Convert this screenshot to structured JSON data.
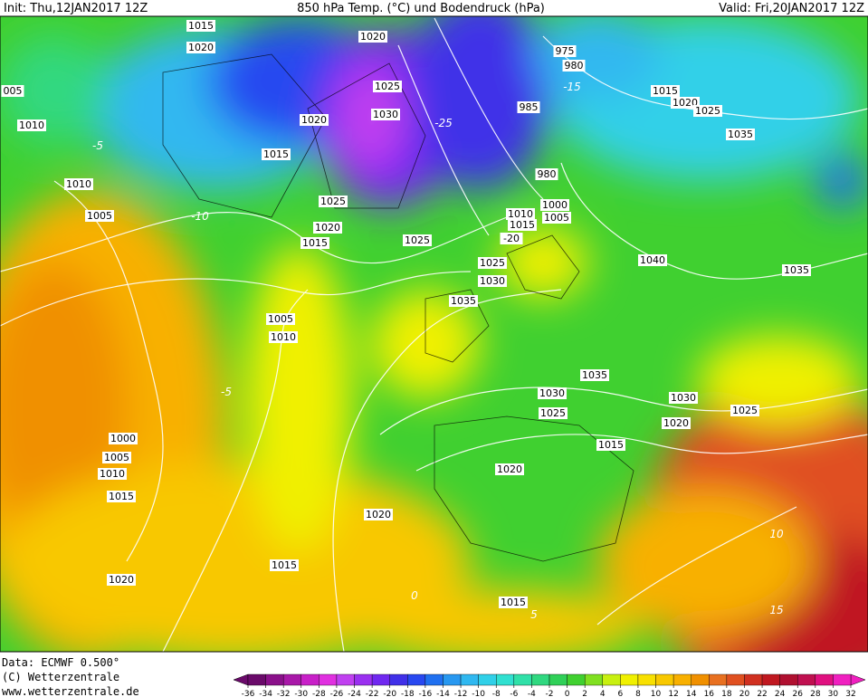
{
  "header": {
    "init": "Init: Thu,12JAN2017 12Z",
    "title": "850 hPa Temp. (°C) und Bodendruck (hPa)",
    "valid": "Valid: Fri,20JAN2017 12Z"
  },
  "footer": {
    "data": "Data: ECMWF  0.500°",
    "copyright": "(C) Wetterzentrale",
    "url": "www.wetterzentrale.de"
  },
  "colorbar": {
    "ticks": [
      -36,
      -34,
      -32,
      -30,
      -28,
      -26,
      -24,
      -22,
      -20,
      -18,
      -16,
      -14,
      -12,
      -10,
      -8,
      -6,
      -4,
      -2,
      0,
      2,
      4,
      6,
      8,
      10,
      12,
      14,
      16,
      18,
      20,
      22,
      24,
      26,
      28,
      30,
      32
    ],
    "colors": [
      "#6a0a6a",
      "#8a108a",
      "#a818a8",
      "#c820c8",
      "#e030e0",
      "#c040f0",
      "#9a30f0",
      "#7028f0",
      "#4030e8",
      "#2848f0",
      "#2070f0",
      "#2898f0",
      "#30b8f0",
      "#30d0e8",
      "#30e0d0",
      "#30e0a8",
      "#30d880",
      "#30d058",
      "#40d030",
      "#80e020",
      "#c8f010",
      "#f0f000",
      "#f8e000",
      "#f8c800",
      "#f8b000",
      "#f09000",
      "#e87020",
      "#e05020",
      "#d03020",
      "#c01820",
      "#b01030",
      "#c01050",
      "#e01080",
      "#f020c0"
    ]
  },
  "isobar_labels": [
    "1015",
    "1020",
    "1020",
    "975",
    "980",
    "1025",
    "1015",
    "1020",
    "1025",
    "1030",
    "1020",
    "985",
    "1035",
    "1015",
    "1010",
    "980",
    "1000",
    "1005",
    "1010",
    "1015",
    "1025",
    "1005",
    "1020",
    "1015",
    "1025",
    "1040",
    "1035",
    "1025",
    "1030",
    "1035",
    "1005",
    "1010",
    "1000",
    "1005",
    "1010",
    "1015",
    "1035",
    "1030",
    "1030",
    "1025",
    "1025",
    "1020",
    "1015",
    "1020",
    "1020",
    "1015",
    "1020",
    "1015",
    "1010",
    "005",
    "-20"
  ],
  "isotherm_labels": [
    "-5",
    "-10",
    "-5",
    "0",
    "5",
    "10",
    "15",
    "-15",
    "-25"
  ]
}
